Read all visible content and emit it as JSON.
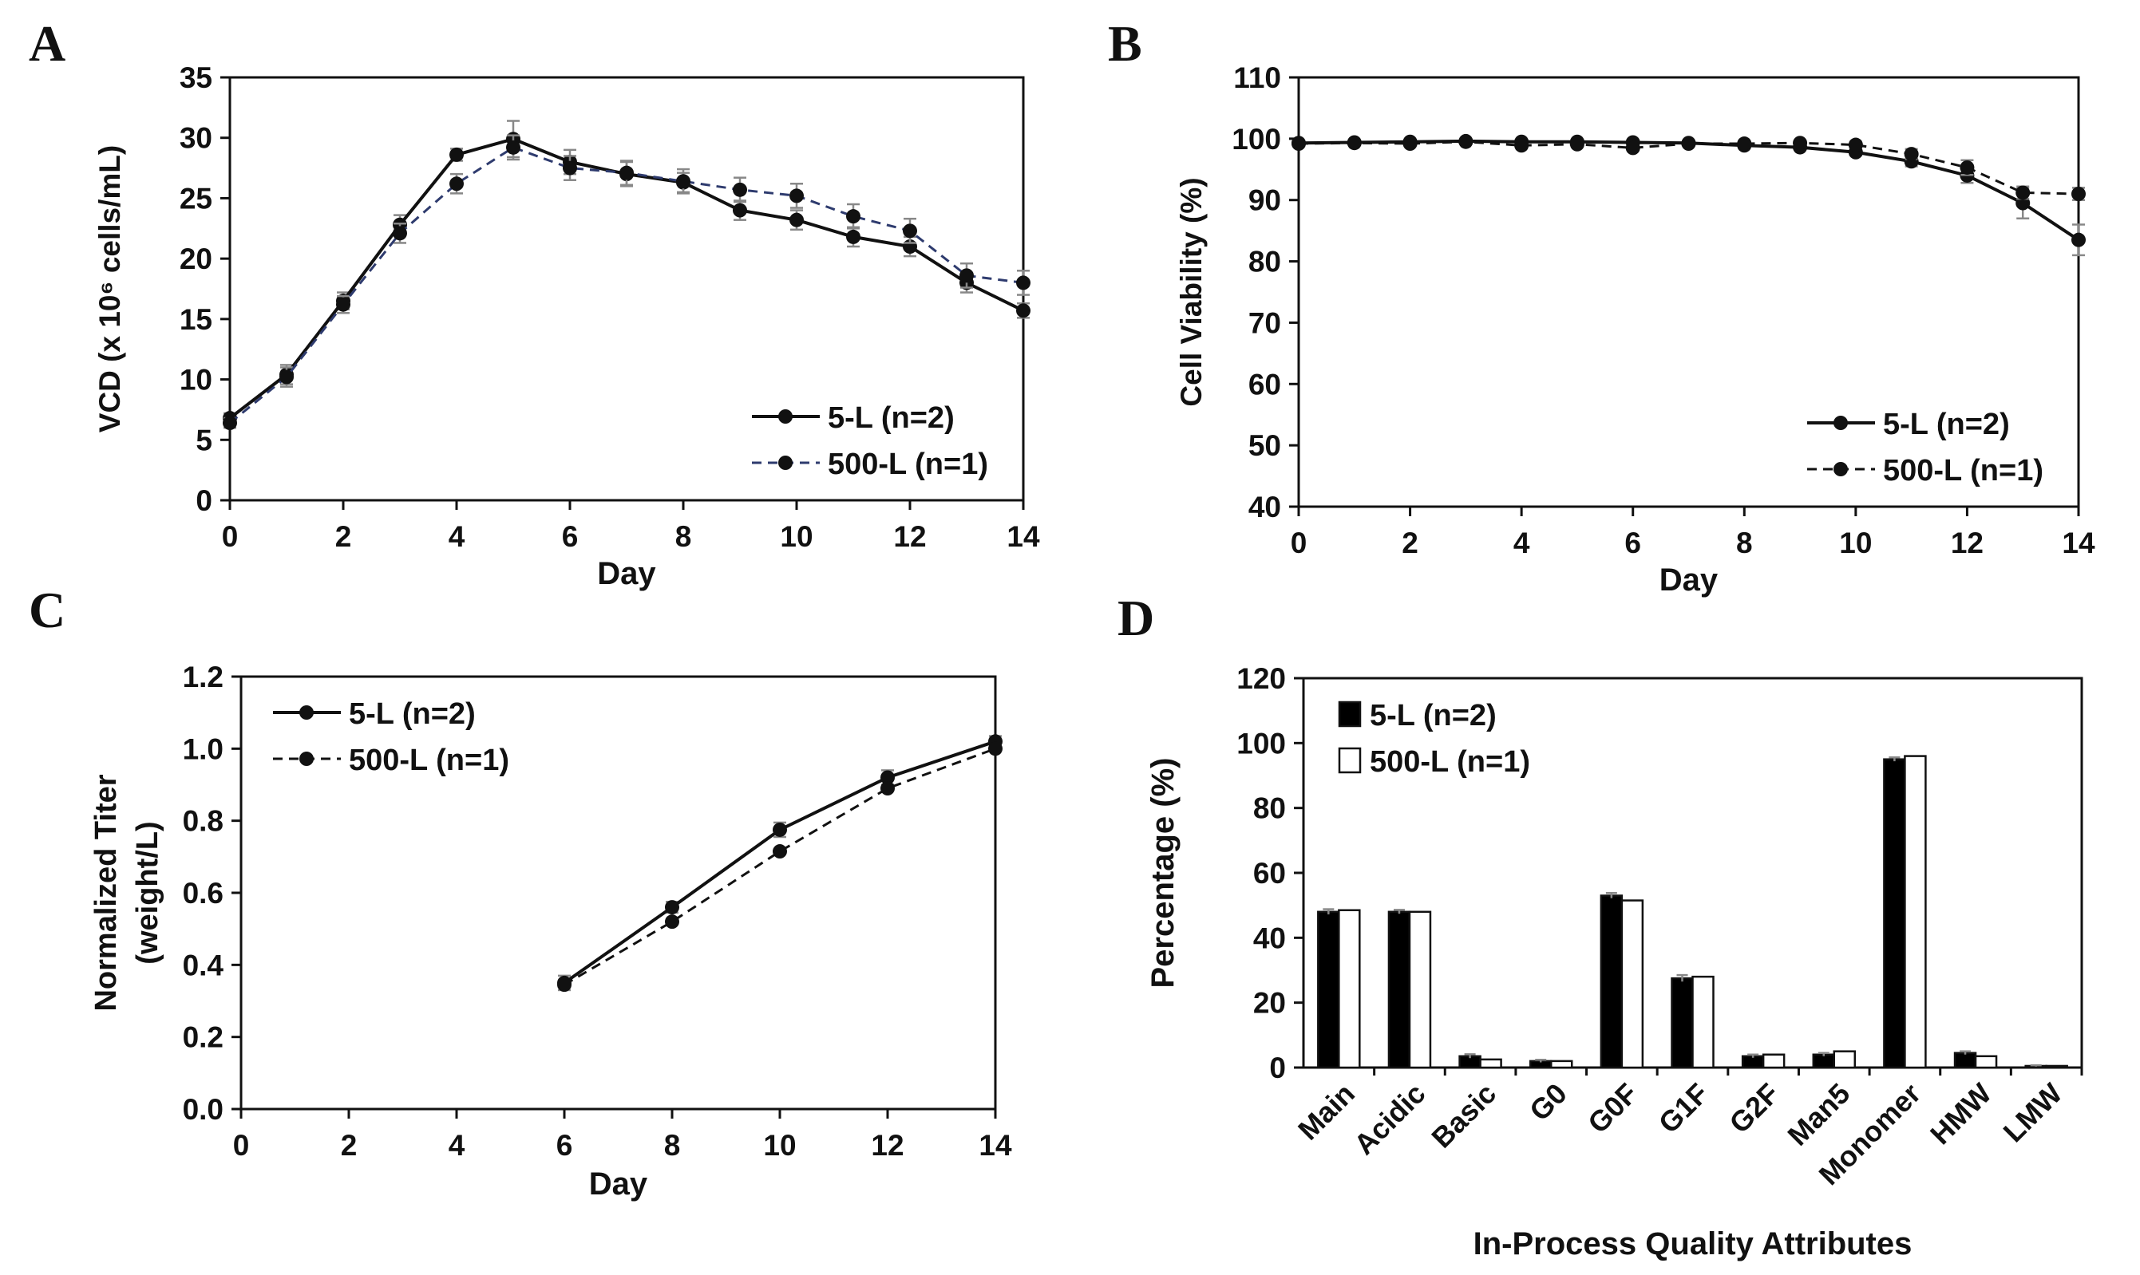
{
  "figure": {
    "panels": [
      "A",
      "B",
      "C",
      "D"
    ]
  },
  "colors": {
    "axis": "#111111",
    "series_5L": "#111111",
    "series_500L_A": "#2e3b6e",
    "series_500L": "#111111",
    "error_bar": "#888888",
    "bar_5L": "#000000",
    "bar_500L": "#ffffff"
  },
  "chart_data": [
    {
      "id": "A",
      "type": "line",
      "xlabel": "Day",
      "ylabel": "VCD (x 10⁶ cells/mL)",
      "xlim": [
        0,
        14
      ],
      "ylim": [
        0,
        35
      ],
      "xticks": [
        0,
        2,
        4,
        6,
        8,
        10,
        12,
        14
      ],
      "yticks": [
        0,
        5,
        10,
        15,
        20,
        25,
        30,
        35
      ],
      "legend_position": "bottom-right",
      "series": [
        {
          "name": "5-L (n=2)",
          "style": "solid",
          "x": [
            0,
            1,
            2,
            3,
            4,
            5,
            6,
            7,
            8,
            9,
            10,
            11,
            12,
            13,
            14
          ],
          "values": [
            6.8,
            10.4,
            16.5,
            22.8,
            28.6,
            29.9,
            28.0,
            27.0,
            26.3,
            24.0,
            23.2,
            21.8,
            21.0,
            18.0,
            15.7
          ],
          "errors": [
            0.4,
            0.8,
            0.7,
            0.8,
            0.5,
            1.5,
            1.0,
            1.0,
            0.8,
            0.8,
            0.8,
            0.8,
            0.8,
            0.8,
            0.6
          ]
        },
        {
          "name": "500-L (n=1)",
          "style": "dashed",
          "x": [
            0,
            1,
            2,
            3,
            4,
            5,
            6,
            7,
            8,
            9,
            10,
            11,
            12,
            13,
            14
          ],
          "values": [
            6.4,
            10.2,
            16.2,
            22.1,
            26.2,
            29.2,
            27.5,
            27.1,
            26.4,
            25.7,
            25.2,
            23.5,
            22.3,
            18.6,
            18.0
          ],
          "errors": [
            0.4,
            0.8,
            0.7,
            0.8,
            0.8,
            1.0,
            1.0,
            1.0,
            1.0,
            1.0,
            1.0,
            1.0,
            1.0,
            1.0,
            1.0
          ]
        }
      ]
    },
    {
      "id": "B",
      "type": "line",
      "xlabel": "Day",
      "ylabel": "Cell Viability (%)",
      "xlim": [
        0,
        14
      ],
      "ylim": [
        40,
        110
      ],
      "xticks": [
        0,
        2,
        4,
        6,
        8,
        10,
        12,
        14
      ],
      "yticks": [
        40,
        50,
        60,
        70,
        80,
        90,
        100,
        110
      ],
      "legend_position": "bottom-right",
      "series": [
        {
          "name": "5-L (n=2)",
          "style": "solid",
          "x": [
            0,
            1,
            2,
            3,
            4,
            5,
            6,
            7,
            8,
            9,
            10,
            11,
            12,
            13,
            14
          ],
          "values": [
            99.3,
            99.4,
            99.5,
            99.6,
            99.5,
            99.5,
            99.4,
            99.3,
            98.9,
            98.6,
            97.8,
            96.3,
            94.0,
            89.5,
            83.5
          ],
          "errors": [
            0.3,
            0.3,
            0.3,
            0.3,
            0.3,
            0.3,
            0.3,
            0.3,
            0.3,
            0.3,
            0.5,
            0.8,
            1.2,
            2.5,
            2.5
          ]
        },
        {
          "name": "500-L (n=1)",
          "style": "dashed",
          "x": [
            0,
            1,
            2,
            3,
            4,
            5,
            6,
            7,
            8,
            9,
            10,
            11,
            12,
            13,
            14
          ],
          "values": [
            99.2,
            99.3,
            99.2,
            99.5,
            98.9,
            99.1,
            98.5,
            99.2,
            99.2,
            99.3,
            99.0,
            97.5,
            95.3,
            91.2,
            91.0
          ],
          "errors": [
            0.3,
            0.3,
            0.3,
            0.3,
            0.3,
            0.3,
            0.3,
            0.3,
            0.3,
            0.3,
            0.5,
            0.8,
            1.2,
            1.0,
            1.0
          ]
        }
      ]
    },
    {
      "id": "C",
      "type": "line",
      "xlabel": "Day",
      "ylabel_lines": [
        "Normalized Titer",
        "(weight/L)"
      ],
      "xlim": [
        0,
        14
      ],
      "ylim": [
        0,
        1.2
      ],
      "xticks": [
        0,
        2,
        4,
        6,
        8,
        10,
        12,
        14
      ],
      "yticks": [
        "0.0",
        "0.2",
        "0.4",
        "0.6",
        "0.8",
        "1.0",
        "1.2"
      ],
      "legend_position": "top-left",
      "series": [
        {
          "name": "5-L (n=2)",
          "style": "solid",
          "x": [
            6,
            8,
            10,
            12,
            14
          ],
          "values": [
            0.35,
            0.56,
            0.775,
            0.92,
            1.02
          ],
          "errors": [
            0.02,
            0.015,
            0.02,
            0.02,
            0.015
          ]
        },
        {
          "name": "500-L (n=1)",
          "style": "dashed",
          "x": [
            6,
            8,
            10,
            12,
            14
          ],
          "values": [
            0.345,
            0.52,
            0.715,
            0.89,
            1.0
          ],
          "errors": [
            0.0,
            0.0,
            0.0,
            0.0,
            0.0
          ]
        }
      ]
    },
    {
      "id": "D",
      "type": "bar",
      "xlabel": "In-Process Quality Attributes",
      "ylabel": "Percentage (%)",
      "ylim": [
        0,
        120
      ],
      "yticks": [
        0,
        20,
        40,
        60,
        80,
        100,
        120
      ],
      "legend_position": "top-left",
      "categories": [
        "Main",
        "Acidic",
        "Basic",
        "G0",
        "G0F",
        "G1F",
        "G2F",
        "Man5",
        "Monomer",
        "HMW",
        "LMW"
      ],
      "series": [
        {
          "name": "5-L (n=2)",
          "fill": "black",
          "values": [
            48.0,
            48.0,
            3.5,
            2.0,
            53.0,
            27.5,
            3.5,
            4.0,
            95.0,
            4.5,
            0.5
          ],
          "errors": [
            0.8,
            0.6,
            0.6,
            0.4,
            0.8,
            1.0,
            0.5,
            0.5,
            0.6,
            0.5,
            0.2
          ]
        },
        {
          "name": "500-L (n=1)",
          "fill": "white",
          "values": [
            48.5,
            48.0,
            2.5,
            2.0,
            51.5,
            28.0,
            4.0,
            5.0,
            96.0,
            3.5,
            0.5
          ],
          "errors": [
            0.0,
            0.0,
            0.0,
            0.0,
            0.0,
            0.0,
            0.0,
            0.0,
            0.0,
            0.0,
            0.0
          ]
        }
      ]
    }
  ]
}
